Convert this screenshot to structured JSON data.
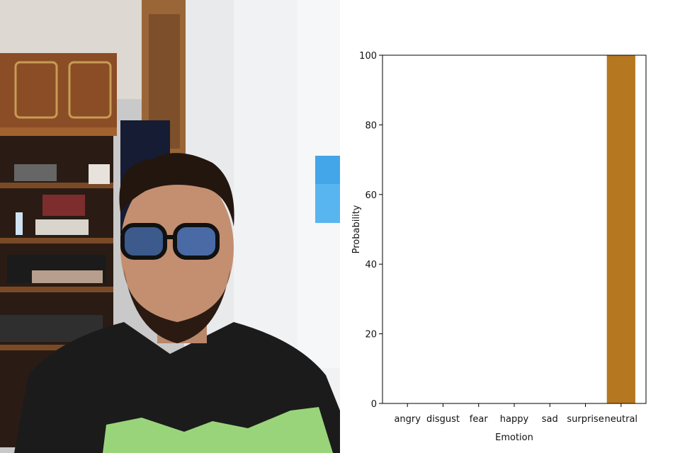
{
  "chart_data": {
    "type": "bar",
    "categories": [
      "angry",
      "disgust",
      "fear",
      "happy",
      "sad",
      "surprise",
      "neutral"
    ],
    "values": [
      0,
      0,
      0,
      0,
      0,
      0,
      100
    ],
    "title": "",
    "xlabel": "Emotion",
    "ylabel": "Probability",
    "ylim": [
      0,
      100
    ],
    "yticks": [
      "0",
      "20",
      "40",
      "60",
      "80",
      "100"
    ],
    "bar_color": "#B67721",
    "grid": false
  },
  "photo": {
    "description_icon": "webcam-photo"
  }
}
